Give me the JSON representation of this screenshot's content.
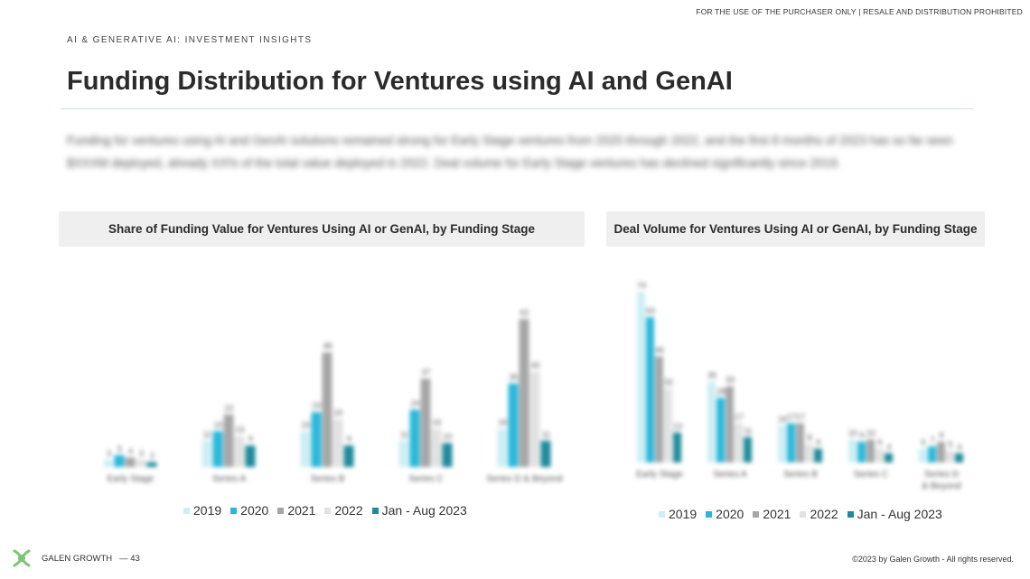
{
  "header": {
    "notice": "FOR THE USE OF THE PURCHASER ONLY | RESALE AND DISTRIBUTION PROHIBITED",
    "section": "AI & GENERATIVE AI: INVESTMENT INSIGHTS",
    "title": "Funding Distribution for Ventures using AI and GenAI"
  },
  "intro_text": "Funding for ventures using AI and GenAI solutions remained strong for Early Stage ventures from 2020 through 2022, and the first 8 months of 2023 has so far seen $XXXM deployed, already XX% of the total value deployed in 2022. Deal volume for Early Stage ventures has declined significantly since 2019.",
  "colors": {
    "2019": "#cdeef4",
    "2020": "#29b8da",
    "2021": "#a6a6a6",
    "2022": "#e2e2e2",
    "Jan - Aug 2023": "#1f8a9a"
  },
  "chart_data": [
    {
      "type": "bar",
      "title": "Share of Funding Value for Ventures Using AI or GenAI, by Funding Stage",
      "categories": [
        "Early Stage",
        "Series A",
        "Series B",
        "Series C",
        "Series D & Beyond"
      ],
      "series": [
        {
          "name": "2019",
          "values": [
            3,
            11,
            15,
            11,
            16
          ]
        },
        {
          "name": "2020",
          "values": [
            5,
            15,
            23,
            24,
            35
          ]
        },
        {
          "name": "2021",
          "values": [
            4,
            22,
            48,
            37,
            62
          ]
        },
        {
          "name": "2022",
          "values": [
            3,
            13,
            20,
            16,
            40
          ]
        },
        {
          "name": "Jan - Aug 2023",
          "values": [
            2,
            9,
            9,
            10,
            11
          ]
        }
      ],
      "ylim": [
        0,
        90
      ],
      "legend": "bottom"
    },
    {
      "type": "bar",
      "title": "Deal Volume for Ventures Using AI or GenAI, by Funding Stage",
      "categories": [
        "Early Stage",
        "Series A",
        "Series B",
        "Series C",
        "Series D & Beyond"
      ],
      "series": [
        {
          "name": "2019",
          "values": [
            74,
            35,
            16,
            10,
            6
          ]
        },
        {
          "name": "2020",
          "values": [
            63,
            28,
            17,
            9,
            7
          ]
        },
        {
          "name": "2021",
          "values": [
            46,
            33,
            17,
            10,
            9
          ]
        },
        {
          "name": "2022",
          "values": [
            32,
            17,
            8,
            6,
            5
          ]
        },
        {
          "name": "Jan - Aug 2023",
          "values": [
            13,
            11,
            6,
            4,
            4
          ]
        }
      ],
      "ylim": [
        0,
        90
      ],
      "legend": "bottom"
    }
  ],
  "footer": {
    "brand": "GALEN GROWTH",
    "page": "— 43",
    "copyright": "©2023 by Galen Growth - All rights reserved."
  },
  "logo_icon": "galen-growth-logo-icon"
}
